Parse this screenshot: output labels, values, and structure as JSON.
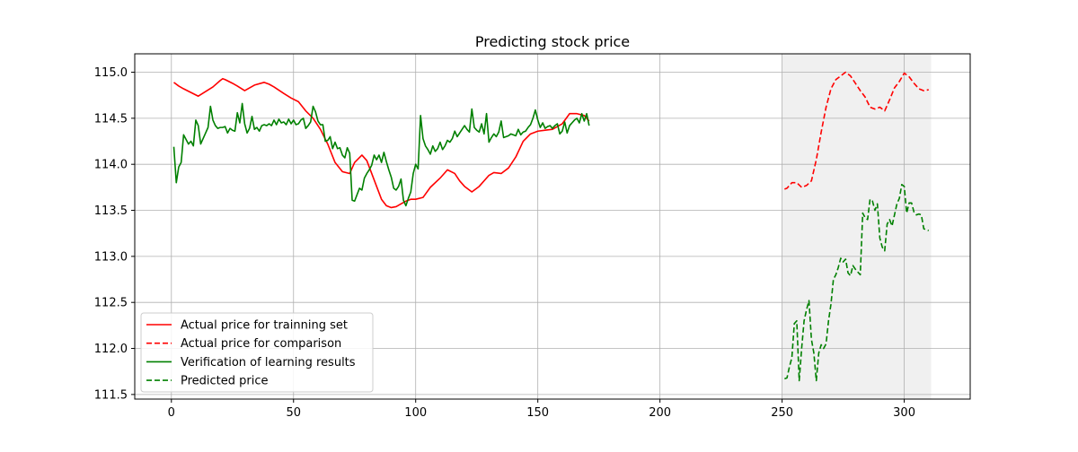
{
  "chart_data": {
    "type": "line",
    "title": "Predicting stock price",
    "xlabel": "",
    "ylabel": "",
    "xlim": [
      -15,
      327
    ],
    "ylim": [
      111.45,
      115.2
    ],
    "x_ticks": [
      0,
      50,
      100,
      150,
      200,
      250,
      300
    ],
    "y_ticks": [
      111.5,
      112.0,
      112.5,
      113.0,
      113.5,
      114.0,
      114.5,
      115.0
    ],
    "x_tick_labels": [
      "0",
      "50",
      "100",
      "150",
      "200",
      "250",
      "300"
    ],
    "y_tick_labels": [
      "111.5",
      "112.0",
      "112.5",
      "113.0",
      "113.5",
      "114.0",
      "114.5",
      "115.0"
    ],
    "grid": true,
    "legend_position": "lower-left",
    "shaded_region": {
      "x_start": 250,
      "x_end": 311,
      "color": "#f0f0f0"
    },
    "series": [
      {
        "name": "Actual price for trainning set",
        "color": "#ff0000",
        "dash": "solid",
        "x": [
          1,
          3,
          5,
          8,
          11,
          14,
          17,
          20,
          21,
          22,
          25,
          27,
          30,
          34,
          38,
          40,
          42,
          46,
          49,
          52,
          55,
          58,
          61,
          64,
          67,
          70,
          73,
          75,
          78,
          80,
          82,
          84,
          86,
          88,
          90,
          92,
          94,
          96,
          98,
          100,
          103,
          106,
          110,
          113,
          116,
          118,
          120,
          123,
          126,
          130,
          132,
          135,
          138,
          141,
          144,
          147,
          150,
          153,
          156,
          160,
          163,
          166,
          169,
          171
        ],
        "values": [
          114.89,
          114.85,
          114.82,
          114.78,
          114.74,
          114.79,
          114.84,
          114.91,
          114.93,
          114.92,
          114.88,
          114.85,
          114.8,
          114.86,
          114.89,
          114.87,
          114.84,
          114.77,
          114.72,
          114.68,
          114.58,
          114.5,
          114.38,
          114.22,
          114.02,
          113.92,
          113.9,
          114.02,
          114.1,
          114.04,
          113.9,
          113.76,
          113.62,
          113.55,
          113.53,
          113.54,
          113.57,
          113.6,
          113.62,
          113.62,
          113.64,
          113.75,
          113.85,
          113.94,
          113.9,
          113.82,
          113.76,
          113.7,
          113.76,
          113.88,
          113.91,
          113.9,
          113.96,
          114.08,
          114.25,
          114.33,
          114.36,
          114.37,
          114.38,
          114.44,
          114.55,
          114.55,
          114.53,
          114.47
        ]
      },
      {
        "name": "Actual price for comparison",
        "color": "#ff0000",
        "dash": "dashed",
        "x": [
          251,
          252,
          254,
          256,
          258,
          260,
          262,
          264,
          266,
          268,
          270,
          272,
          274,
          276,
          278,
          280,
          282,
          284,
          286,
          288,
          290,
          292,
          294,
          296,
          298,
          300,
          302,
          304,
          306,
          308,
          310
        ],
        "values": [
          113.73,
          113.74,
          113.8,
          113.8,
          113.75,
          113.77,
          113.82,
          114.05,
          114.35,
          114.62,
          114.82,
          114.92,
          114.96,
          115.0,
          114.96,
          114.88,
          114.8,
          114.73,
          114.62,
          114.6,
          114.62,
          114.58,
          114.7,
          114.83,
          114.9,
          114.99,
          114.95,
          114.88,
          114.82,
          114.8,
          114.81
        ]
      },
      {
        "name": "Verification of learning results",
        "color": "#008000",
        "dash": "solid",
        "x": [
          1,
          2,
          3,
          4,
          5,
          6,
          7,
          8,
          9,
          10,
          11,
          12,
          13,
          14,
          15,
          16,
          17,
          18,
          19,
          20,
          21,
          22,
          23,
          24,
          25,
          26,
          27,
          28,
          29,
          30,
          31,
          32,
          33,
          34,
          35,
          36,
          37,
          38,
          39,
          40,
          41,
          42,
          43,
          44,
          45,
          46,
          47,
          48,
          49,
          50,
          51,
          52,
          53,
          54,
          55,
          56,
          57,
          58,
          59,
          60,
          61,
          62,
          63,
          64,
          65,
          66,
          67,
          68,
          69,
          70,
          71,
          72,
          73,
          74,
          75,
          76,
          77,
          78,
          79,
          80,
          81,
          82,
          83,
          84,
          85,
          86,
          87,
          88,
          89,
          90,
          91,
          92,
          93,
          94,
          95,
          96,
          97,
          98,
          99,
          100,
          101,
          102,
          103,
          104,
          105,
          106,
          107,
          108,
          109,
          110,
          111,
          112,
          113,
          114,
          115,
          116,
          117,
          118,
          119,
          120,
          121,
          122,
          123,
          124,
          125,
          126,
          127,
          128,
          129,
          130,
          131,
          132,
          133,
          134,
          135,
          136,
          137,
          138,
          139,
          140,
          141,
          142,
          143,
          144,
          145,
          146,
          147,
          148,
          149,
          150,
          151,
          152,
          153,
          154,
          155,
          156,
          157,
          158,
          159,
          160,
          161,
          162,
          163,
          164,
          165,
          166,
          167,
          168,
          169,
          170,
          171
        ],
        "values": [
          114.19,
          113.8,
          113.97,
          114.02,
          114.32,
          114.27,
          114.22,
          114.25,
          114.2,
          114.48,
          114.42,
          114.22,
          114.28,
          114.34,
          114.4,
          114.63,
          114.48,
          114.42,
          114.39,
          114.4,
          114.4,
          114.41,
          114.34,
          114.39,
          114.37,
          114.36,
          114.56,
          114.45,
          114.66,
          114.44,
          114.34,
          114.39,
          114.52,
          114.38,
          114.4,
          114.36,
          114.42,
          114.43,
          114.42,
          114.44,
          114.42,
          114.48,
          114.43,
          114.49,
          114.45,
          114.46,
          114.43,
          114.49,
          114.44,
          114.48,
          114.43,
          114.44,
          114.48,
          114.5,
          114.39,
          114.42,
          114.46,
          114.63,
          114.57,
          114.47,
          114.43,
          114.43,
          114.25,
          114.26,
          114.3,
          114.17,
          114.24,
          114.17,
          114.18,
          114.1,
          114.07,
          114.18,
          114.12,
          113.61,
          113.6,
          113.67,
          113.74,
          113.72,
          113.85,
          113.9,
          113.94,
          113.99,
          114.1,
          114.05,
          114.1,
          114.02,
          114.13,
          114.03,
          113.94,
          113.86,
          113.74,
          113.72,
          113.76,
          113.84,
          113.61,
          113.55,
          113.63,
          113.7,
          113.9,
          114.0,
          113.95,
          114.53,
          114.28,
          114.2,
          114.16,
          114.11,
          114.2,
          114.14,
          114.17,
          114.24,
          114.16,
          114.2,
          114.26,
          114.24,
          114.28,
          114.36,
          114.3,
          114.34,
          114.38,
          114.42,
          114.38,
          114.35,
          114.6,
          114.4,
          114.37,
          114.35,
          114.44,
          114.33,
          114.55,
          114.24,
          114.29,
          114.33,
          114.3,
          114.35,
          114.47,
          114.29,
          114.3,
          114.31,
          114.33,
          114.32,
          114.31,
          114.38,
          114.32,
          114.35,
          114.36,
          114.4,
          114.43,
          114.5,
          114.59,
          114.48,
          114.4,
          114.45,
          114.39,
          114.41,
          114.42,
          114.39,
          114.42,
          114.44,
          114.33,
          114.36,
          114.46,
          114.34,
          114.42,
          114.45,
          114.48,
          114.5,
          114.45,
          114.55,
          114.47,
          114.55,
          114.42
        ]
      },
      {
        "name": "Predicted price",
        "color": "#008000",
        "dash": "dashed",
        "x": [
          251,
          252,
          253,
          254,
          255,
          256,
          257,
          258,
          259,
          260,
          261,
          262,
          263,
          264,
          265,
          266,
          267,
          268,
          269,
          270,
          271,
          272,
          273,
          274,
          275,
          276,
          277,
          278,
          279,
          280,
          281,
          282,
          283,
          284,
          285,
          286,
          287,
          288,
          289,
          290,
          291,
          292,
          293,
          294,
          295,
          296,
          297,
          298,
          299,
          300,
          301,
          302,
          303,
          304,
          305,
          306,
          307,
          308,
          309,
          310
        ],
        "values": [
          111.67,
          111.68,
          111.8,
          111.9,
          112.27,
          112.3,
          111.65,
          112.0,
          112.3,
          112.42,
          112.52,
          112.1,
          111.95,
          111.65,
          111.95,
          112.04,
          112.0,
          112.05,
          112.3,
          112.48,
          112.75,
          112.8,
          112.88,
          112.98,
          112.94,
          112.97,
          112.82,
          112.79,
          112.9,
          112.86,
          112.83,
          112.8,
          113.47,
          113.42,
          113.4,
          113.62,
          113.6,
          113.5,
          113.57,
          113.2,
          113.1,
          113.06,
          113.35,
          113.4,
          113.33,
          113.45,
          113.57,
          113.63,
          113.78,
          113.76,
          113.47,
          113.58,
          113.58,
          113.48,
          113.45,
          113.46,
          113.45,
          113.3,
          113.29,
          113.28
        ]
      }
    ]
  }
}
